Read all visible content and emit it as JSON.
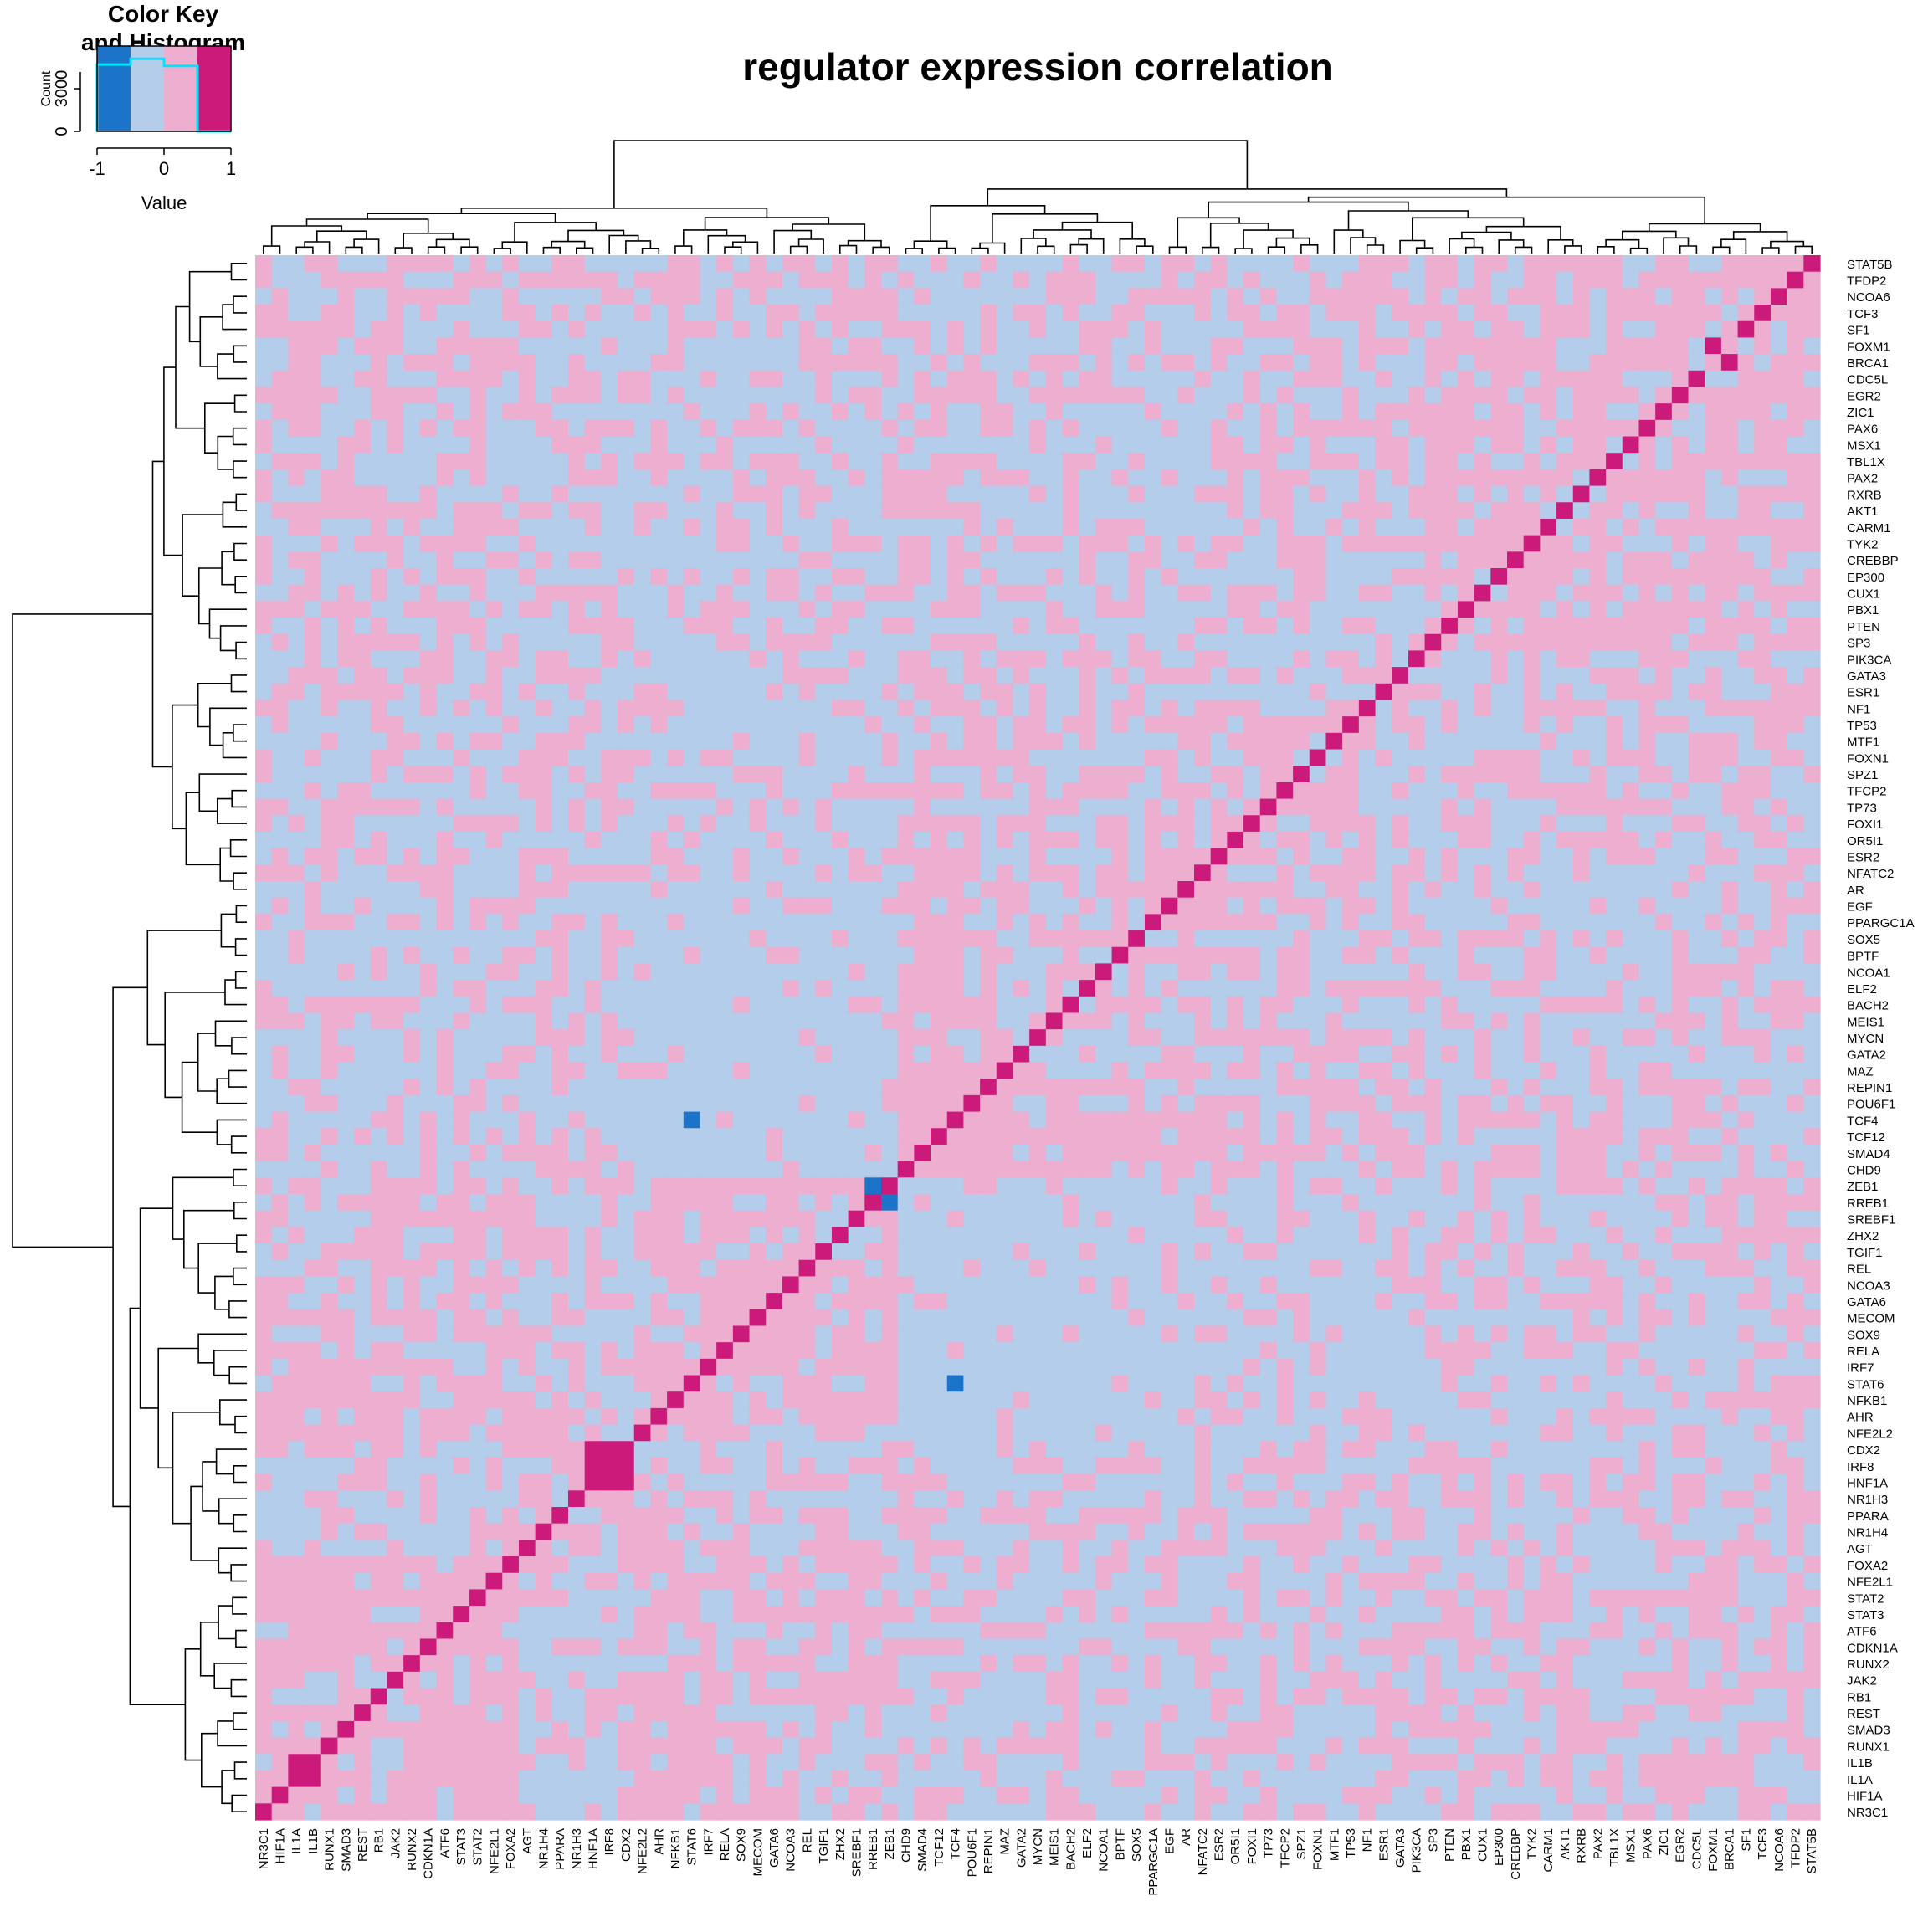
{
  "chart_data": {
    "type": "heatmap",
    "title": "regulator expression correlation",
    "row_labels_top_to_bottom": [
      "STAT5B",
      "TFDP2",
      "NCOA6",
      "TCF3",
      "SF1",
      "FOXM1",
      "BRCA1",
      "CDC5L",
      "EGR2",
      "ZIC1",
      "PAX6",
      "MSX1",
      "TBL1X",
      "PAX2",
      "RXRB",
      "AKT1",
      "CARM1",
      "TYK2",
      "CREBBP",
      "EP300",
      "CUX1",
      "PBX1",
      "PTEN",
      "SP3",
      "PIK3CA",
      "GATA3",
      "ESR1",
      "NF1",
      "TP53",
      "MTF1",
      "FOXN1",
      "SPZ1",
      "TFCP2",
      "TP73",
      "FOXI1",
      "OR5I1",
      "ESR2",
      "NFATC2",
      "AR",
      "EGF",
      "PPARGC1A",
      "SOX5",
      "BPTF",
      "NCOA1",
      "ELF2",
      "BACH2",
      "MEIS1",
      "MYCN",
      "GATA2",
      "MAZ",
      "REPIN1",
      "POU6F1",
      "TCF4",
      "TCF12",
      "SMAD4",
      "CHD9",
      "ZEB1",
      "RREB1",
      "SREBF1",
      "ZHX2",
      "TGIF1",
      "REL",
      "NCOA3",
      "GATA6",
      "MECOM",
      "SOX9",
      "RELA",
      "IRF7",
      "STAT6",
      "NFKB1",
      "AHR",
      "NFE2L2",
      "CDX2",
      "IRF8",
      "HNF1A",
      "NR1H3",
      "PPARA",
      "NR1H4",
      "AGT",
      "FOXA2",
      "NFE2L1",
      "STAT2",
      "STAT3",
      "ATF6",
      "CDKN1A",
      "RUNX2",
      "JAK2",
      "RB1",
      "REST",
      "SMAD3",
      "RUNX1",
      "IL1B",
      "IL1A",
      "HIF1A",
      "NR3C1"
    ],
    "column_labels_left_to_right": [
      "NR3C1",
      "HIF1A",
      "IL1A",
      "IL1B",
      "RUNX1",
      "SMAD3",
      "REST",
      "RB1",
      "JAK2",
      "RUNX2",
      "CDKN1A",
      "ATF6",
      "STAT3",
      "STAT2",
      "NFE2L1",
      "FOXA2",
      "AGT",
      "NR1H4",
      "PPARA",
      "NR1H3",
      "HNF1A",
      "IRF8",
      "CDX2",
      "NFE2L2",
      "AHR",
      "NFKB1",
      "STAT6",
      "IRF7",
      "RELA",
      "SOX9",
      "MECOM",
      "GATA6",
      "NCOA3",
      "REL",
      "TGIF1",
      "ZHX2",
      "SREBF1",
      "RREB1",
      "ZEB1",
      "CHD9",
      "SMAD4",
      "TCF12",
      "TCF4",
      "POU6F1",
      "REPIN1",
      "MAZ",
      "GATA2",
      "MYCN",
      "MEIS1",
      "BACH2",
      "ELF2",
      "NCOA1",
      "BPTF",
      "SOX5",
      "PPARGC1A",
      "EGF",
      "AR",
      "NFATC2",
      "ESR2",
      "OR5I1",
      "FOXI1",
      "TP73",
      "TFCP2",
      "SPZ1",
      "FOXN1",
      "MTF1",
      "TP53",
      "NF1",
      "ESR1",
      "GATA3",
      "PIK3CA",
      "SP3",
      "PTEN",
      "PBX1",
      "CUX1",
      "EP300",
      "CREBBP",
      "TYK2",
      "CARM1",
      "AKT1",
      "RXRB",
      "PAX2",
      "TBL1X",
      "MSX1",
      "PAX6",
      "ZIC1",
      "EGR2",
      "CDC5L",
      "FOXM1",
      "BRCA1",
      "SF1",
      "TCF3",
      "NCOA6",
      "TFDP2",
      "STAT5B"
    ],
    "value_range": [
      -1,
      1
    ],
    "color_bins": [
      {
        "range": [
          -1,
          -0.5
        ],
        "color": "#1b74c8"
      },
      {
        "range": [
          -0.5,
          0
        ],
        "color": "#b3cdea"
      },
      {
        "range": [
          0,
          0.5
        ],
        "color": "#edaed0"
      },
      {
        "range": [
          0.5,
          1
        ],
        "color": "#cb1a7a"
      }
    ],
    "strong_negative_pairs": [
      [
        "TCF4",
        "STAT6"
      ],
      [
        "RREB1",
        "ZEB1"
      ]
    ],
    "strong_positive_blocks": [
      [
        "IL1A",
        "IL1B"
      ],
      [
        "CDX2",
        "IRF8",
        "HNF1A"
      ]
    ],
    "dendrograms": {
      "rows": true,
      "columns": true
    },
    "color_key": {
      "title": "Color Key",
      "subtitle": "and Histogram",
      "xlabel": "Value",
      "ylabel": "Count",
      "x_ticks": [
        "-1",
        "0",
        "1"
      ],
      "y_ticks": [
        "0",
        "3000"
      ],
      "histogram_counts": [
        0,
        4700,
        5100,
        4600,
        0
      ]
    }
  }
}
